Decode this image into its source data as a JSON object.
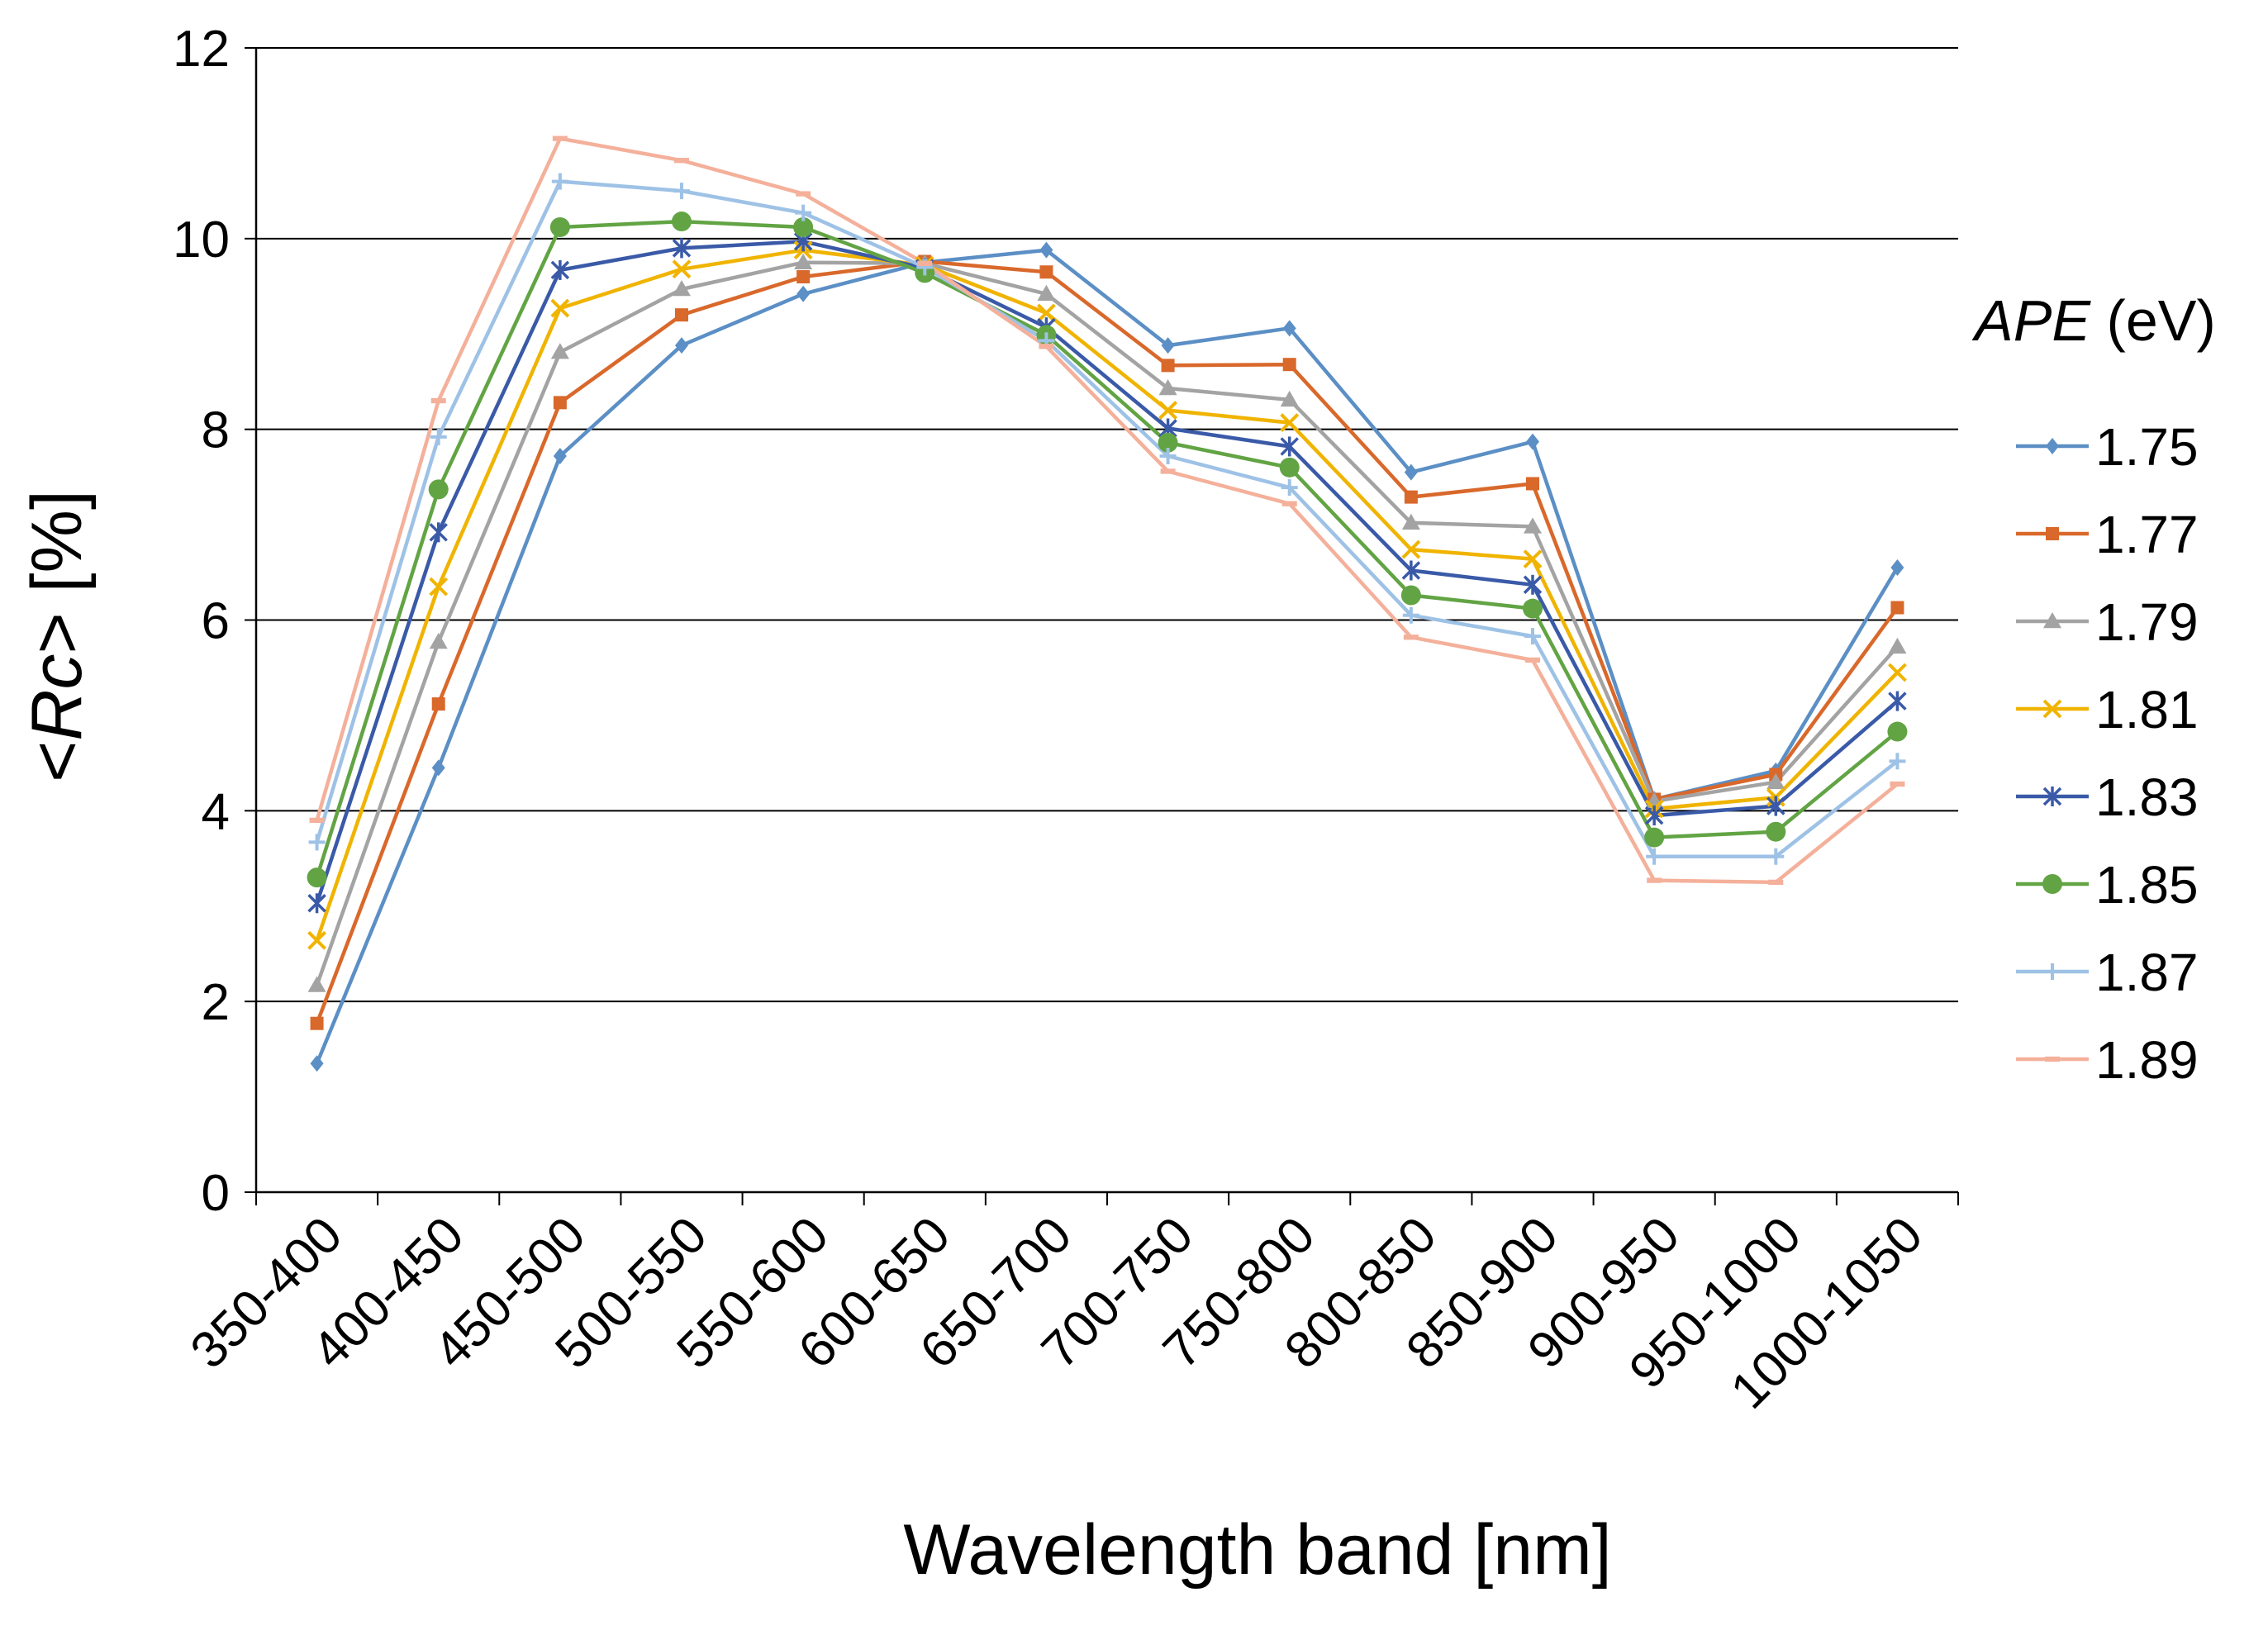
{
  "chart_data": {
    "type": "line",
    "title": "",
    "xlabel": "Wavelength band [nm]",
    "ylabel_parts": [
      "<",
      "Rc",
      "> [%]"
    ],
    "ylim": [
      0,
      12
    ],
    "yticks": [
      0,
      2,
      4,
      6,
      8,
      10,
      12
    ],
    "grid": true,
    "legend_position": "right",
    "legend_title_parts": [
      "APE",
      " (eV)"
    ],
    "categories": [
      "350-400",
      "400-450",
      "450-500",
      "500-550",
      "550-600",
      "600-650",
      "650-700",
      "700-750",
      "750-800",
      "800-850",
      "850-900",
      "900-950",
      "950-1000",
      "1000-1050"
    ],
    "series": [
      {
        "name": "1.75",
        "color": "#5b8fc5",
        "marker": "diamond",
        "values": [
          1.35,
          4.45,
          7.72,
          8.88,
          9.42,
          9.75,
          9.88,
          8.88,
          9.06,
          7.55,
          7.87,
          4.12,
          4.42,
          6.55
        ]
      },
      {
        "name": "1.77",
        "color": "#d9682b",
        "marker": "square",
        "values": [
          1.77,
          5.12,
          8.28,
          9.2,
          9.6,
          9.76,
          9.65,
          8.67,
          8.68,
          7.29,
          7.43,
          4.12,
          4.38,
          6.13
        ]
      },
      {
        "name": "1.79",
        "color": "#a3a3a3",
        "marker": "triangle",
        "values": [
          2.17,
          5.77,
          8.81,
          9.47,
          9.75,
          9.74,
          9.42,
          8.43,
          8.31,
          7.02,
          6.98,
          4.1,
          4.3,
          5.72
        ]
      },
      {
        "name": "1.81",
        "color": "#f0b400",
        "marker": "x",
        "values": [
          2.64,
          6.35,
          9.27,
          9.68,
          9.88,
          9.72,
          9.22,
          8.2,
          8.07,
          6.74,
          6.64,
          4.02,
          4.14,
          5.45
        ]
      },
      {
        "name": "1.83",
        "color": "#3a5aa8",
        "marker": "star",
        "values": [
          3.03,
          6.92,
          9.67,
          9.9,
          9.97,
          9.69,
          9.07,
          8.01,
          7.82,
          6.52,
          6.37,
          3.95,
          4.05,
          5.15
        ]
      },
      {
        "name": "1.85",
        "color": "#62a444",
        "marker": "circle",
        "values": [
          3.3,
          7.37,
          10.12,
          10.18,
          10.12,
          9.64,
          8.99,
          7.86,
          7.6,
          6.26,
          6.12,
          3.72,
          3.78,
          4.83
        ]
      },
      {
        "name": "1.87",
        "color": "#9ec2e6",
        "marker": "plus",
        "values": [
          3.67,
          7.92,
          10.6,
          10.5,
          10.27,
          9.7,
          8.93,
          7.72,
          7.39,
          6.05,
          5.83,
          3.52,
          3.52,
          4.52
        ]
      },
      {
        "name": "1.89",
        "color": "#f4b09a",
        "marker": "dash",
        "values": [
          3.9,
          8.3,
          11.05,
          10.82,
          10.47,
          9.74,
          8.87,
          7.56,
          7.22,
          5.82,
          5.58,
          3.27,
          3.25,
          4.28
        ]
      }
    ]
  }
}
